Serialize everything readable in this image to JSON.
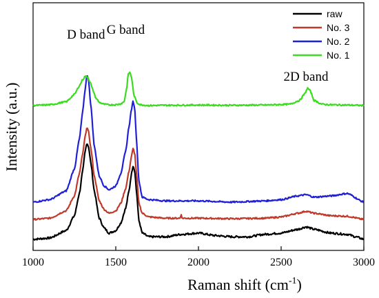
{
  "chart_data": {
    "type": "line",
    "xlabel": "Raman shift (cm",
    "xlabel_sup": "-1",
    "xlabel_close": ")",
    "ylabel": "Intensity (a.u.)",
    "xlim": [
      1000,
      3000
    ],
    "ylim": [
      0,
      1
    ],
    "x_ticks": [
      1000,
      1500,
      2000,
      2500,
      3000
    ],
    "x_tick_labels": [
      "1000",
      "1500",
      "2000",
      "2500",
      "3000"
    ],
    "y_ticks_labeled": false,
    "grid": false,
    "legend_position": "top-right",
    "annotations": [
      {
        "text": "D band",
        "x": 1320,
        "y": 0.855
      },
      {
        "text": "G band",
        "x": 1560,
        "y": 0.875
      },
      {
        "text": "2D band",
        "x": 2650,
        "y": 0.685
      }
    ],
    "series": [
      {
        "name": "raw",
        "color": "#000000",
        "baseline": 0.045,
        "noise": 0.004,
        "x": [
          1000,
          1100,
          1200,
          1250,
          1280,
          1300,
          1315,
          1325,
          1335,
          1350,
          1370,
          1400,
          1430,
          1460,
          1500,
          1530,
          1560,
          1580,
          1595,
          1605,
          1615,
          1625,
          1640,
          1660,
          1700,
          1800,
          1900,
          2000,
          2100,
          2200,
          2300,
          2400,
          2500,
          2600,
          2650,
          2700,
          2800,
          2900,
          2950,
          3000
        ],
        "y": [
          0.045,
          0.05,
          0.08,
          0.14,
          0.23,
          0.32,
          0.4,
          0.434,
          0.42,
          0.35,
          0.24,
          0.13,
          0.09,
          0.07,
          0.08,
          0.11,
          0.17,
          0.24,
          0.31,
          0.344,
          0.32,
          0.24,
          0.12,
          0.07,
          0.055,
          0.055,
          0.065,
          0.07,
          0.06,
          0.055,
          0.055,
          0.065,
          0.07,
          0.085,
          0.095,
          0.085,
          0.07,
          0.065,
          0.055,
          0.045
        ]
      },
      {
        "name": "No. 3",
        "color": "#c0392b",
        "baseline": 0.125,
        "noise": 0.003,
        "x": [
          1000,
          1100,
          1200,
          1250,
          1280,
          1300,
          1315,
          1325,
          1335,
          1350,
          1370,
          1400,
          1430,
          1460,
          1500,
          1530,
          1560,
          1580,
          1595,
          1605,
          1615,
          1625,
          1640,
          1660,
          1700,
          1800,
          1890,
          1895,
          1900,
          2000,
          2200,
          2400,
          2500,
          2600,
          2650,
          2700,
          2800,
          2900,
          3000
        ],
        "y": [
          0.125,
          0.13,
          0.16,
          0.22,
          0.31,
          0.39,
          0.46,
          0.497,
          0.48,
          0.41,
          0.3,
          0.2,
          0.165,
          0.15,
          0.16,
          0.19,
          0.25,
          0.32,
          0.38,
          0.412,
          0.39,
          0.31,
          0.19,
          0.15,
          0.135,
          0.13,
          0.13,
          0.15,
          0.13,
          0.13,
          0.128,
          0.13,
          0.135,
          0.15,
          0.158,
          0.15,
          0.14,
          0.138,
          0.125
        ]
      },
      {
        "name": "No. 2",
        "color": "#1f1fd6",
        "baseline": 0.195,
        "noise": 0.003,
        "x": [
          1000,
          1100,
          1200,
          1250,
          1280,
          1300,
          1315,
          1325,
          1335,
          1350,
          1370,
          1400,
          1430,
          1460,
          1500,
          1530,
          1560,
          1580,
          1595,
          1605,
          1615,
          1625,
          1640,
          1660,
          1700,
          1800,
          2000,
          2200,
          2400,
          2500,
          2600,
          2650,
          2700,
          2800,
          2900,
          3000
        ],
        "y": [
          0.195,
          0.205,
          0.24,
          0.33,
          0.45,
          0.56,
          0.65,
          0.708,
          0.69,
          0.58,
          0.42,
          0.3,
          0.26,
          0.245,
          0.26,
          0.31,
          0.4,
          0.5,
          0.57,
          0.603,
          0.57,
          0.45,
          0.28,
          0.215,
          0.205,
          0.2,
          0.2,
          0.195,
          0.2,
          0.205,
          0.22,
          0.225,
          0.215,
          0.22,
          0.23,
          0.195
        ]
      },
      {
        "name": "No. 1",
        "color": "#3adc1e",
        "baseline": 0.585,
        "noise": 0.003,
        "x": [
          1000,
          1100,
          1200,
          1250,
          1280,
          1300,
          1315,
          1330,
          1345,
          1360,
          1380,
          1400,
          1430,
          1460,
          1500,
          1530,
          1550,
          1565,
          1575,
          1585,
          1595,
          1610,
          1630,
          1650,
          1700,
          1800,
          2000,
          2200,
          2400,
          2550,
          2610,
          2640,
          2660,
          2675,
          2700,
          2750,
          2800,
          2900,
          3000
        ],
        "y": [
          0.585,
          0.588,
          0.6,
          0.63,
          0.665,
          0.69,
          0.703,
          0.7,
          0.68,
          0.65,
          0.615,
          0.598,
          0.59,
          0.588,
          0.588,
          0.592,
          0.6,
          0.65,
          0.71,
          0.72,
          0.7,
          0.625,
          0.595,
          0.588,
          0.585,
          0.586,
          0.587,
          0.586,
          0.587,
          0.59,
          0.605,
          0.63,
          0.655,
          0.645,
          0.605,
          0.59,
          0.588,
          0.587,
          0.585
        ]
      }
    ]
  }
}
